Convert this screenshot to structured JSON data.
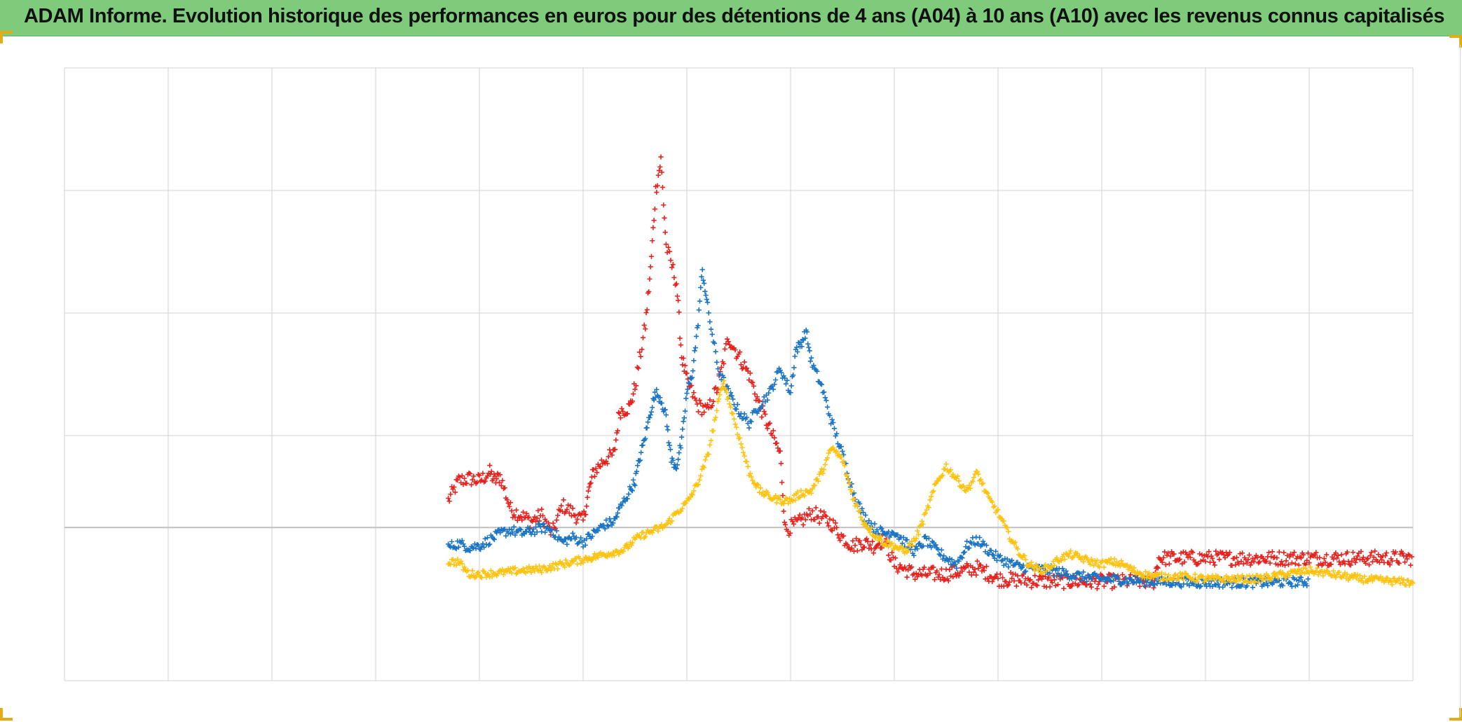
{
  "header": {
    "title": "ADAM Informe. Evolution historique des performances en euros pour des détentions de 4 ans (A04) à 10 ans (A10) avec les revenus connus capitalisés"
  },
  "colors": {
    "title_background": "#7ecb7c",
    "grid": "#d9d9d9",
    "zero_line": "#bfbfbf",
    "corner_accent": "#e3ac16"
  },
  "chart_data": {
    "type": "scatter",
    "marker": "plus",
    "title": "ADAM Informe. Evolution historique des performances en euros pour des détentions de 4 ans (A04) à 10 ans (A10) avec les revenus connus capitalisés",
    "xlabel": "",
    "ylabel": "",
    "x_axis_labels_visible": false,
    "y_axis_labels_visible": false,
    "grid": true,
    "legend": "none",
    "xlim": [
      0,
      13
    ],
    "ylim": [
      -1.25,
      3.75
    ],
    "x_gridlines": [
      0,
      1,
      2,
      3,
      4,
      5,
      6,
      7,
      8,
      9,
      10,
      11,
      12,
      13
    ],
    "y_gridlines": [
      -1.25,
      0,
      0.75,
      1.75,
      2.75,
      3.75
    ],
    "zero_line": 0,
    "series": [
      {
        "color": "#e8211c",
        "noise": 0.06,
        "points": [
          [
            3.7,
            0.22
          ],
          [
            3.8,
            0.38
          ],
          [
            3.9,
            0.4
          ],
          [
            4.0,
            0.38
          ],
          [
            4.1,
            0.45
          ],
          [
            4.15,
            0.38
          ],
          [
            4.2,
            0.42
          ],
          [
            4.3,
            0.15
          ],
          [
            4.4,
            0.1
          ],
          [
            4.5,
            0.05
          ],
          [
            4.6,
            0.1
          ],
          [
            4.7,
            -0.05
          ],
          [
            4.8,
            0.18
          ],
          [
            4.9,
            0.12
          ],
          [
            5.0,
            0.05
          ],
          [
            5.05,
            0.28
          ],
          [
            5.1,
            0.45
          ],
          [
            5.2,
            0.55
          ],
          [
            5.3,
            0.6
          ],
          [
            5.35,
            0.95
          ],
          [
            5.45,
            0.98
          ],
          [
            5.5,
            1.15
          ],
          [
            5.6,
            1.65
          ],
          [
            5.65,
            2.1
          ],
          [
            5.7,
            2.75
          ],
          [
            5.75,
            3.0
          ],
          [
            5.8,
            2.3
          ],
          [
            5.9,
            2.0
          ],
          [
            5.95,
            1.4
          ],
          [
            6.0,
            1.2
          ],
          [
            6.1,
            1.0
          ],
          [
            6.2,
            0.95
          ],
          [
            6.3,
            1.15
          ],
          [
            6.4,
            1.55
          ],
          [
            6.5,
            1.4
          ],
          [
            6.6,
            1.25
          ],
          [
            6.7,
            1.0
          ],
          [
            6.8,
            0.8
          ],
          [
            6.9,
            0.6
          ],
          [
            6.95,
            -0.02
          ],
          [
            7.1,
            0.05
          ],
          [
            7.2,
            0.12
          ],
          [
            7.3,
            0.08
          ],
          [
            7.4,
            0.03
          ],
          [
            7.5,
            -0.08
          ],
          [
            7.6,
            -0.15
          ],
          [
            7.7,
            -0.12
          ],
          [
            7.8,
            -0.15
          ],
          [
            7.9,
            -0.1
          ],
          [
            8.0,
            -0.3
          ],
          [
            8.2,
            -0.38
          ],
          [
            8.5,
            -0.38
          ],
          [
            8.8,
            -0.33
          ],
          [
            9.0,
            -0.42
          ],
          [
            9.5,
            -0.44
          ],
          [
            10.0,
            -0.44
          ],
          [
            10.5,
            -0.44
          ],
          [
            10.55,
            -0.25
          ],
          [
            11.0,
            -0.25
          ],
          [
            12.0,
            -0.25
          ],
          [
            13.0,
            -0.25
          ]
        ]
      },
      {
        "color": "#1b74c4",
        "noise": 0.04,
        "points": [
          [
            3.7,
            -0.16
          ],
          [
            3.8,
            -0.13
          ],
          [
            3.9,
            -0.16
          ],
          [
            4.0,
            -0.15
          ],
          [
            4.1,
            -0.1
          ],
          [
            4.2,
            -0.05
          ],
          [
            4.3,
            -0.02
          ],
          [
            4.4,
            -0.05
          ],
          [
            4.5,
            -0.03
          ],
          [
            4.6,
            0.0
          ],
          [
            4.7,
            -0.02
          ],
          [
            4.8,
            -0.12
          ],
          [
            4.9,
            -0.08
          ],
          [
            5.0,
            -0.12
          ],
          [
            5.1,
            -0.05
          ],
          [
            5.2,
            0.02
          ],
          [
            5.3,
            0.05
          ],
          [
            5.35,
            0.15
          ],
          [
            5.45,
            0.3
          ],
          [
            5.5,
            0.38
          ],
          [
            5.55,
            0.58
          ],
          [
            5.6,
            0.75
          ],
          [
            5.65,
            0.95
          ],
          [
            5.7,
            1.1
          ],
          [
            5.75,
            1.05
          ],
          [
            5.8,
            0.9
          ],
          [
            5.85,
            0.55
          ],
          [
            5.9,
            0.5
          ],
          [
            5.95,
            0.7
          ],
          [
            6.0,
            1.1
          ],
          [
            6.05,
            1.25
          ],
          [
            6.1,
            1.6
          ],
          [
            6.15,
            2.1
          ],
          [
            6.2,
            1.8
          ],
          [
            6.3,
            1.3
          ],
          [
            6.4,
            1.1
          ],
          [
            6.5,
            0.95
          ],
          [
            6.6,
            0.85
          ],
          [
            6.7,
            1.0
          ],
          [
            6.8,
            1.1
          ],
          [
            6.9,
            1.3
          ],
          [
            7.0,
            1.1
          ],
          [
            7.05,
            1.45
          ],
          [
            7.1,
            1.5
          ],
          [
            7.15,
            1.6
          ],
          [
            7.2,
            1.35
          ],
          [
            7.3,
            1.15
          ],
          [
            7.4,
            0.85
          ],
          [
            7.5,
            0.6
          ],
          [
            7.6,
            0.3
          ],
          [
            7.7,
            0.1
          ],
          [
            7.8,
            0.0
          ],
          [
            7.9,
            -0.05
          ],
          [
            8.0,
            -0.03
          ],
          [
            8.1,
            -0.12
          ],
          [
            8.2,
            -0.2
          ],
          [
            8.3,
            -0.1
          ],
          [
            8.4,
            -0.18
          ],
          [
            8.5,
            -0.25
          ],
          [
            8.6,
            -0.3
          ],
          [
            8.7,
            -0.15
          ],
          [
            8.8,
            -0.1
          ],
          [
            8.9,
            -0.18
          ],
          [
            9.0,
            -0.25
          ],
          [
            9.2,
            -0.32
          ],
          [
            9.5,
            -0.35
          ],
          [
            9.8,
            -0.4
          ],
          [
            10.0,
            -0.42
          ],
          [
            10.5,
            -0.44
          ],
          [
            11.0,
            -0.45
          ],
          [
            11.5,
            -0.45
          ],
          [
            12.0,
            -0.44
          ]
        ]
      },
      {
        "color": "#ffc20e",
        "noise": 0.03,
        "points": [
          [
            3.7,
            -0.28
          ],
          [
            3.8,
            -0.28
          ],
          [
            3.9,
            -0.38
          ],
          [
            4.0,
            -0.38
          ],
          [
            4.2,
            -0.37
          ],
          [
            4.4,
            -0.35
          ],
          [
            4.6,
            -0.34
          ],
          [
            4.8,
            -0.3
          ],
          [
            5.0,
            -0.26
          ],
          [
            5.2,
            -0.22
          ],
          [
            5.4,
            -0.18
          ],
          [
            5.5,
            -0.1
          ],
          [
            5.6,
            -0.05
          ],
          [
            5.7,
            -0.02
          ],
          [
            5.8,
            0.02
          ],
          [
            5.9,
            0.12
          ],
          [
            6.0,
            0.2
          ],
          [
            6.1,
            0.35
          ],
          [
            6.2,
            0.58
          ],
          [
            6.3,
            1.0
          ],
          [
            6.35,
            1.2
          ],
          [
            6.4,
            1.05
          ],
          [
            6.5,
            0.75
          ],
          [
            6.6,
            0.45
          ],
          [
            6.7,
            0.3
          ],
          [
            6.8,
            0.25
          ],
          [
            6.9,
            0.22
          ],
          [
            7.0,
            0.22
          ],
          [
            7.1,
            0.28
          ],
          [
            7.2,
            0.3
          ],
          [
            7.3,
            0.45
          ],
          [
            7.4,
            0.65
          ],
          [
            7.5,
            0.55
          ],
          [
            7.6,
            0.25
          ],
          [
            7.7,
            0.05
          ],
          [
            7.8,
            -0.05
          ],
          [
            7.9,
            -0.12
          ],
          [
            8.0,
            -0.15
          ],
          [
            8.1,
            -0.2
          ],
          [
            8.2,
            -0.1
          ],
          [
            8.3,
            0.1
          ],
          [
            8.4,
            0.35
          ],
          [
            8.5,
            0.5
          ],
          [
            8.6,
            0.4
          ],
          [
            8.7,
            0.3
          ],
          [
            8.8,
            0.45
          ],
          [
            8.9,
            0.25
          ],
          [
            9.0,
            0.12
          ],
          [
            9.1,
            -0.05
          ],
          [
            9.2,
            -0.2
          ],
          [
            9.3,
            -0.3
          ],
          [
            9.4,
            -0.35
          ],
          [
            9.5,
            -0.32
          ],
          [
            9.6,
            -0.25
          ],
          [
            9.7,
            -0.22
          ],
          [
            9.8,
            -0.25
          ],
          [
            9.9,
            -0.28
          ],
          [
            10.0,
            -0.3
          ],
          [
            10.1,
            -0.28
          ],
          [
            10.2,
            -0.3
          ],
          [
            10.3,
            -0.35
          ],
          [
            10.4,
            -0.38
          ],
          [
            10.5,
            -0.4
          ],
          [
            10.8,
            -0.4
          ],
          [
            11.0,
            -0.42
          ],
          [
            11.5,
            -0.42
          ],
          [
            12.0,
            -0.35
          ],
          [
            12.5,
            -0.42
          ],
          [
            13.0,
            -0.45
          ],
          [
            13.5,
            -0.45
          ]
        ]
      }
    ]
  }
}
